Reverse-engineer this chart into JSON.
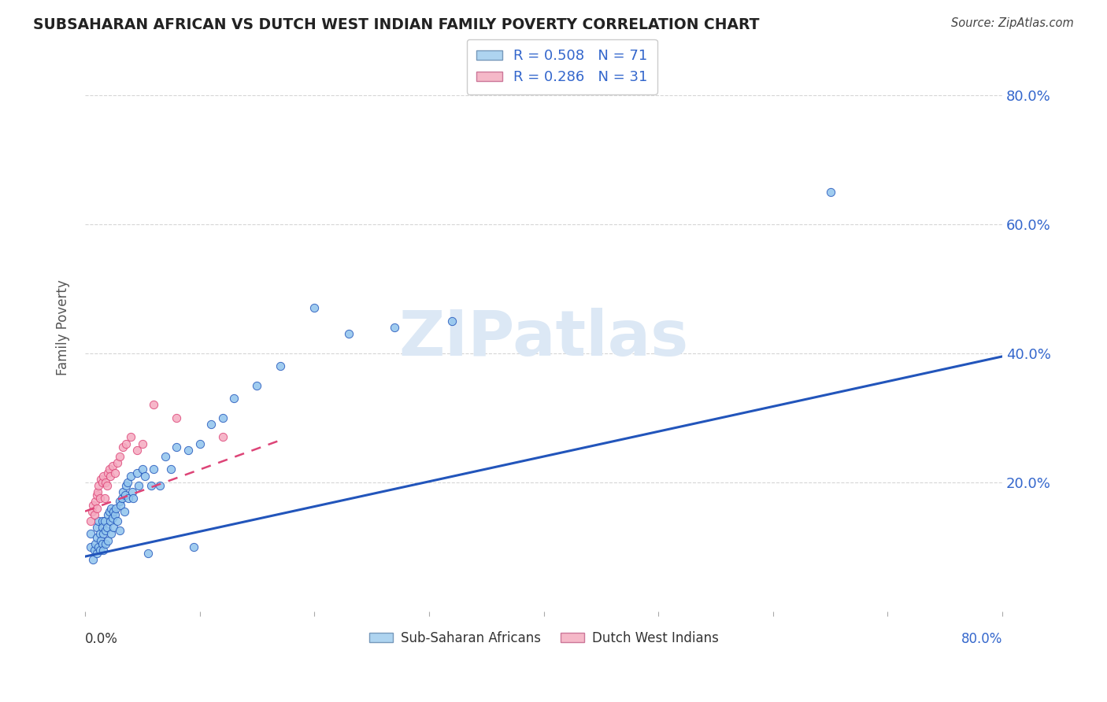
{
  "title": "SUBSAHARAN AFRICAN VS DUTCH WEST INDIAN FAMILY POVERTY CORRELATION CHART",
  "source": "Source: ZipAtlas.com",
  "ylabel": "Family Poverty",
  "ytick_vals": [
    0.8,
    0.6,
    0.4,
    0.2
  ],
  "xlim": [
    0.0,
    0.8
  ],
  "ylim": [
    0.0,
    0.88
  ],
  "legend1_label": "R = 0.508   N = 71",
  "legend2_label": "R = 0.286   N = 31",
  "legend_color1": "#aed4f0",
  "legend_color2": "#f5b8c8",
  "scatter_color1": "#90c4ed",
  "scatter_color2": "#f5aac0",
  "line_color1": "#2255bb",
  "line_color2": "#dd4477",
  "watermark": "ZIPatlas",
  "watermark_color": "#dce8f5",
  "background_color": "#ffffff",
  "grid_color": "#cccccc",
  "sub_saharan_x": [
    0.005,
    0.005,
    0.007,
    0.008,
    0.009,
    0.01,
    0.01,
    0.01,
    0.012,
    0.012,
    0.013,
    0.013,
    0.014,
    0.015,
    0.015,
    0.015,
    0.016,
    0.016,
    0.017,
    0.018,
    0.018,
    0.019,
    0.02,
    0.02,
    0.021,
    0.022,
    0.023,
    0.023,
    0.024,
    0.025,
    0.025,
    0.026,
    0.027,
    0.028,
    0.03,
    0.03,
    0.031,
    0.032,
    0.033,
    0.034,
    0.035,
    0.036,
    0.037,
    0.038,
    0.04,
    0.041,
    0.042,
    0.045,
    0.047,
    0.05,
    0.052,
    0.055,
    0.058,
    0.06,
    0.065,
    0.07,
    0.075,
    0.08,
    0.09,
    0.095,
    0.1,
    0.11,
    0.12,
    0.13,
    0.15,
    0.17,
    0.2,
    0.23,
    0.27,
    0.32,
    0.65
  ],
  "sub_saharan_y": [
    0.1,
    0.12,
    0.08,
    0.095,
    0.105,
    0.13,
    0.115,
    0.09,
    0.14,
    0.1,
    0.12,
    0.095,
    0.11,
    0.14,
    0.105,
    0.13,
    0.12,
    0.095,
    0.14,
    0.125,
    0.105,
    0.13,
    0.15,
    0.11,
    0.155,
    0.14,
    0.16,
    0.12,
    0.145,
    0.155,
    0.13,
    0.15,
    0.16,
    0.14,
    0.17,
    0.125,
    0.165,
    0.175,
    0.185,
    0.155,
    0.18,
    0.195,
    0.2,
    0.175,
    0.21,
    0.185,
    0.175,
    0.215,
    0.195,
    0.22,
    0.21,
    0.09,
    0.195,
    0.22,
    0.195,
    0.24,
    0.22,
    0.255,
    0.25,
    0.1,
    0.26,
    0.29,
    0.3,
    0.33,
    0.35,
    0.38,
    0.47,
    0.43,
    0.44,
    0.45,
    0.65
  ],
  "dutch_x": [
    0.005,
    0.006,
    0.007,
    0.008,
    0.009,
    0.01,
    0.01,
    0.011,
    0.012,
    0.013,
    0.014,
    0.015,
    0.016,
    0.017,
    0.018,
    0.019,
    0.02,
    0.021,
    0.022,
    0.024,
    0.026,
    0.028,
    0.03,
    0.033,
    0.036,
    0.04,
    0.045,
    0.05,
    0.06,
    0.08,
    0.12
  ],
  "dutch_y": [
    0.14,
    0.155,
    0.165,
    0.15,
    0.17,
    0.16,
    0.18,
    0.185,
    0.195,
    0.175,
    0.205,
    0.2,
    0.21,
    0.175,
    0.2,
    0.195,
    0.215,
    0.22,
    0.21,
    0.225,
    0.215,
    0.23,
    0.24,
    0.255,
    0.26,
    0.27,
    0.25,
    0.26,
    0.32,
    0.3,
    0.27
  ],
  "line1_x0": 0.0,
  "line1_y0": 0.085,
  "line1_x1": 0.8,
  "line1_y1": 0.395,
  "line2_x0": 0.0,
  "line2_y0": 0.155,
  "line2_x1": 0.17,
  "line2_y1": 0.265,
  "bottom_label1": "Sub-Saharan Africans",
  "bottom_label2": "Dutch West Indians"
}
